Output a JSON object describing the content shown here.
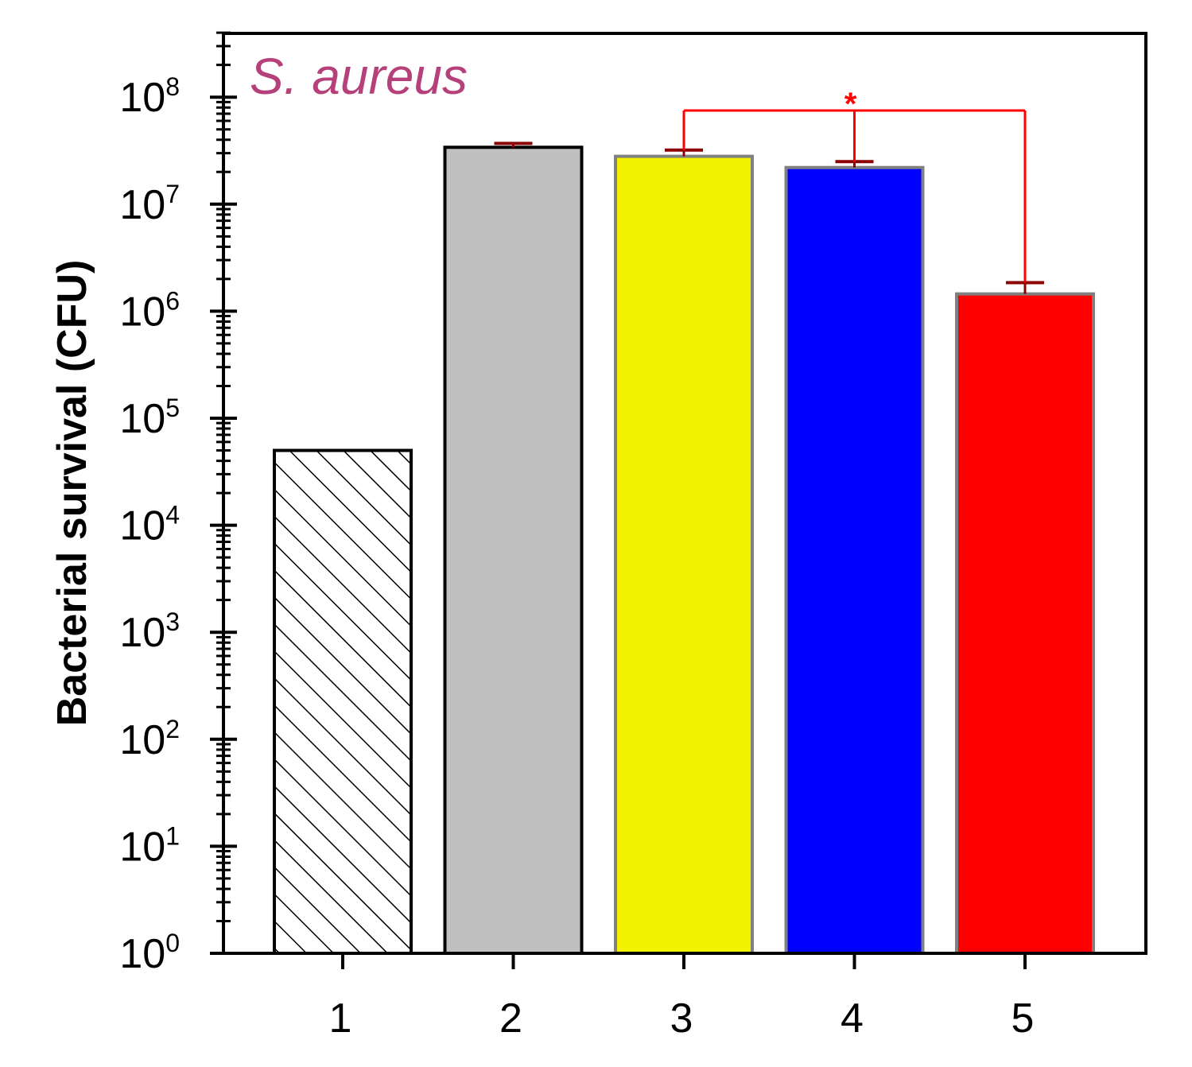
{
  "chart_data": {
    "type": "bar",
    "title": "",
    "xlabel": "",
    "ylabel": "Bacterial survival (CFU)",
    "yscale": "log",
    "ylim": [
      1,
      400000000
    ],
    "categories": [
      "1",
      "2",
      "3",
      "4",
      "5"
    ],
    "values": [
      50000,
      34000000,
      28000000,
      22000000,
      1450000
    ],
    "errors_upper": [
      null,
      37000000,
      32000000,
      25000000,
      1850000
    ],
    "y_tick_values": [
      1,
      10,
      100,
      1000,
      10000,
      100000,
      1000000,
      10000000,
      100000000
    ],
    "y_tick_labels": [
      {
        "base": "10",
        "exp": "0"
      },
      {
        "base": "10",
        "exp": "1"
      },
      {
        "base": "10",
        "exp": "2"
      },
      {
        "base": "10",
        "exp": "3"
      },
      {
        "base": "10",
        "exp": "4"
      },
      {
        "base": "10",
        "exp": "5"
      },
      {
        "base": "10",
        "exp": "6"
      },
      {
        "base": "10",
        "exp": "7"
      },
      {
        "base": "10",
        "exp": "8"
      }
    ],
    "bar_styles": [
      {
        "fill": "hatch",
        "stroke": "#000000"
      },
      {
        "fill": "#c0c0c0",
        "stroke": "#000000"
      },
      {
        "fill": "#f2f200",
        "stroke": "#808080"
      },
      {
        "fill": "#0000ff",
        "stroke": "#808080"
      },
      {
        "fill": "#ff0000",
        "stroke": "#808080"
      }
    ],
    "error_bar_color": "#8b0000",
    "annotation": {
      "text": "S. aureus",
      "color": "#b5407a"
    },
    "significance": {
      "label": "*",
      "color": "#ff0000",
      "pairs": [
        [
          "3",
          "5"
        ],
        [
          "4",
          "5"
        ]
      ]
    },
    "grid": false,
    "legend": "none"
  }
}
